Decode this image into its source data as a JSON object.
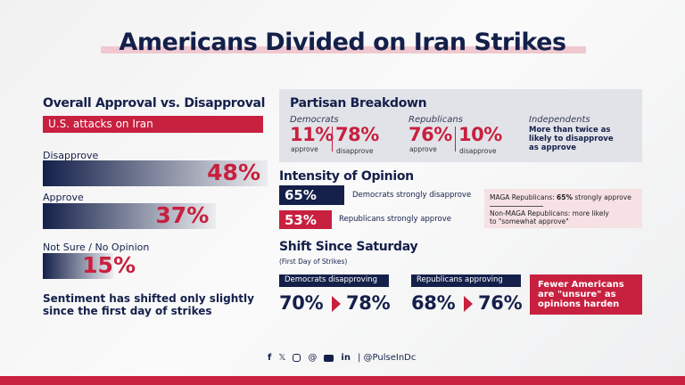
{
  "title": "Americans Divided on Iran Strikes",
  "overall": {
    "heading": "Overall Approval vs. Disapproval",
    "banner": "U.S. attacks on Iran",
    "items": [
      {
        "label": "Disapprove",
        "value": "48%"
      },
      {
        "label": "Approve",
        "value": "37%"
      },
      {
        "label": "Not Sure / No Opinion",
        "value": "15%"
      }
    ],
    "note": "Sentiment has shifted only slightly since the first day of strikes"
  },
  "partisan": {
    "heading": "Partisan Breakdown",
    "democrats": {
      "name": "Democrats",
      "approve": "11%",
      "approve_label": "approve",
      "disapprove": "78%",
      "disapprove_label": "disapprove"
    },
    "republicans": {
      "name": "Republicans",
      "approve": "76%",
      "approve_label": "approve",
      "disapprove": "10%",
      "disapprove_label": "disapprove"
    },
    "independents": {
      "name": "Independents",
      "text": "More than twice as likely to disapprove as approve"
    }
  },
  "intensity": {
    "heading": "Intensity of Opinion",
    "rows": [
      {
        "value": "65%",
        "text": "Democrats strongly disapprove"
      },
      {
        "value": "53%",
        "text": "Republicans strongly approve"
      }
    ],
    "maga_prefix": "MAGA Republicans: ",
    "maga_value": "65%",
    "maga_suffix": " strongly approve",
    "nonmaga": "Non-MAGA Republicans: more likely to \"somewhat approve\""
  },
  "shift": {
    "heading": "Shift Since Saturday",
    "sub": "(First Day of Strikes)",
    "groups": [
      {
        "label": "Democrats disapproving",
        "from": "70%",
        "to": "78%"
      },
      {
        "label": "Republicans approving",
        "from": "68%",
        "to": "76%"
      }
    ],
    "callout": "Fewer Americans are \"unsure\" as opinions harden"
  },
  "footer": {
    "icons": [
      "facebook-icon",
      "x-icon",
      "instagram-icon",
      "threads-icon",
      "youtube-icon",
      "linkedin-icon"
    ],
    "handle": "@PulseInDc"
  },
  "colors": {
    "navy": "#14204a",
    "red": "#c8203f",
    "panel": "#e1e3e8",
    "pink": "#f6e1e4"
  },
  "chart_data": {
    "type": "bar",
    "title": "Overall Approval vs. Disapproval",
    "subtitle": "U.S. attacks on Iran",
    "categories": [
      "Disapprove",
      "Approve",
      "Not Sure / No Opinion"
    ],
    "values": [
      48,
      37,
      15
    ],
    "unit": "%"
  }
}
